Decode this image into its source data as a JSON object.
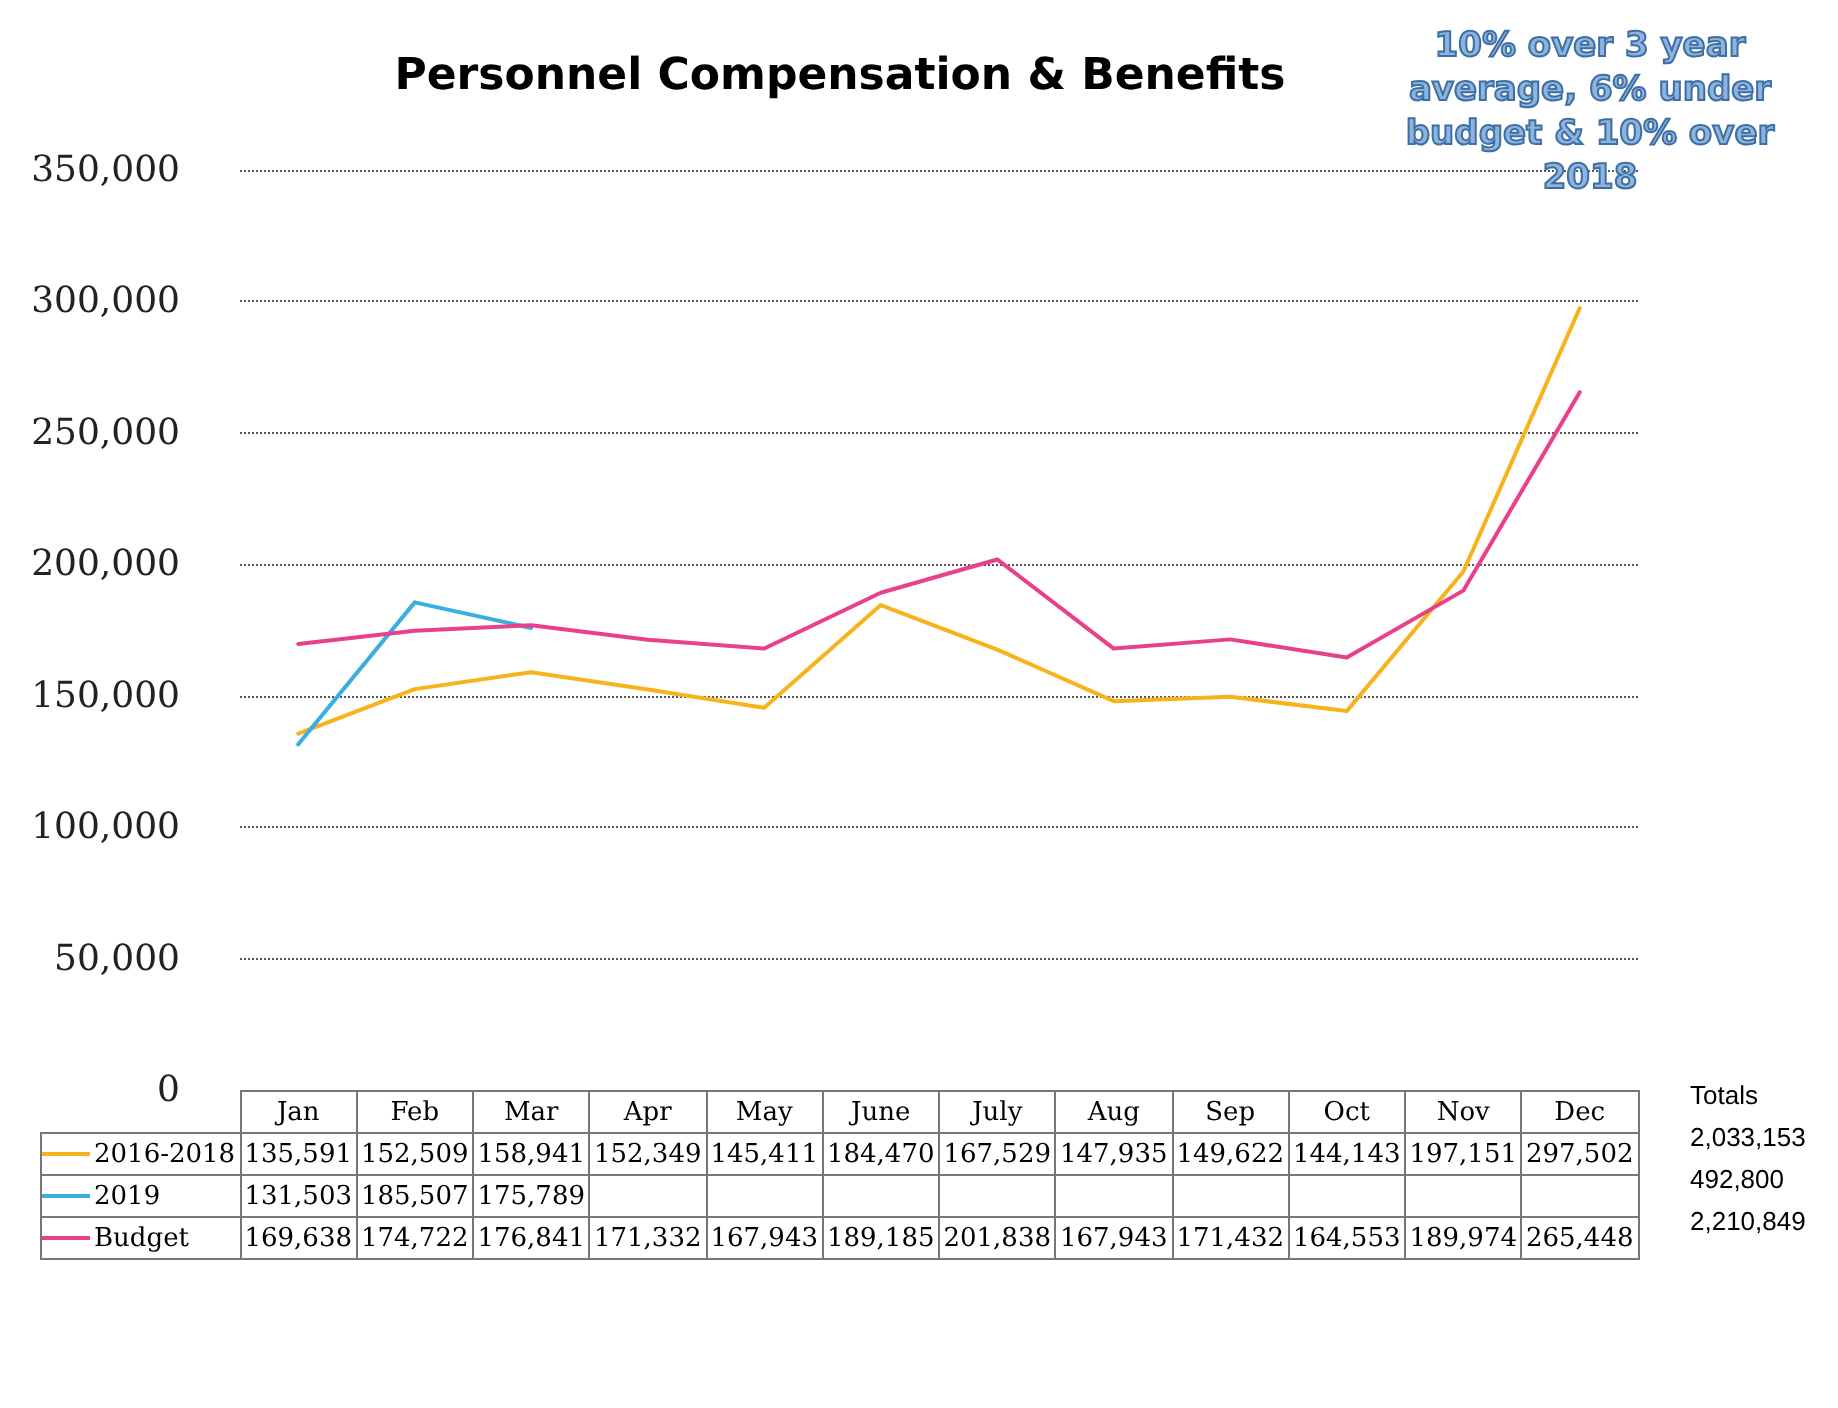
{
  "chart_data": {
    "type": "line",
    "title": "Personnel Compensation & Benefits",
    "categories": [
      "Jan",
      "Feb",
      "Mar",
      "Apr",
      "May",
      "June",
      "July",
      "Aug",
      "Sep",
      "Oct",
      "Nov",
      "Dec"
    ],
    "series": [
      {
        "name": "2016-2018",
        "color": "#f6b31b",
        "values": [
          135591,
          152509,
          158941,
          152349,
          145411,
          184470,
          167529,
          147935,
          149622,
          144143,
          197151,
          297502
        ],
        "value_labels": [
          "135,591",
          "152,509",
          "158,941",
          "152,349",
          "145,411",
          "184,470",
          "167,529",
          "147,935",
          "149,622",
          "144,143",
          "197,151",
          "297,502"
        ]
      },
      {
        "name": "2019",
        "color": "#3aaee0",
        "values": [
          131503,
          185507,
          175789,
          null,
          null,
          null,
          null,
          null,
          null,
          null,
          null,
          null
        ],
        "value_labels": [
          "131,503",
          "185,507",
          "175,789",
          null,
          null,
          null,
          null,
          null,
          null,
          null,
          null,
          null
        ]
      },
      {
        "name": "Budget",
        "color": "#e8408a",
        "values": [
          169638,
          174722,
          176841,
          171332,
          167943,
          189185,
          201838,
          167943,
          171432,
          164553,
          189974,
          265448
        ],
        "value_labels": [
          "169,638",
          "174,722",
          "176,841",
          "171,332",
          "167,943",
          "189,185",
          "201,838",
          "167,943",
          "171,432",
          "164,553",
          "189,974",
          "265,448"
        ]
      }
    ],
    "ylim": [
      0,
      350000
    ],
    "yticks": [
      0,
      {
        "value": 50000,
        "label": "50,000"
      },
      {
        "value": 100000,
        "label": "100,000"
      },
      {
        "value": 150000,
        "label": "150,000"
      },
      {
        "value": 200000,
        "label": "200,000"
      },
      {
        "value": 250000,
        "label": "250,000"
      },
      {
        "value": 300000,
        "label": "300,000"
      },
      {
        "value": 350000,
        "label": "350,000"
      }
    ],
    "grid": "y",
    "legend": "bottom",
    "marker": "none",
    "line_style": "solid",
    "annotations": [
      "10% over 3 year average, 6% under budget & 10% over 2018",
      "Totals",
      "2,033,153",
      "492,800",
      "2,210,849"
    ]
  }
}
